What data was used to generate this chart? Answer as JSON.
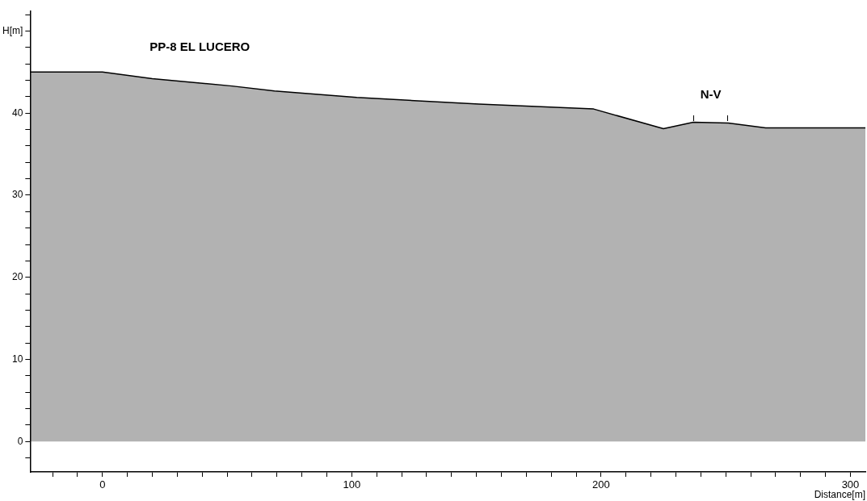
{
  "chart_data": {
    "type": "area",
    "title": "PP-8 EL LUCERO",
    "xlabel": "Distance[m]",
    "x": [
      -29,
      0,
      20,
      52,
      69,
      102,
      151,
      197,
      225,
      237,
      251,
      266,
      306
    ],
    "series": [
      {
        "color": "#000000",
        "values": [
          45,
          45,
          44.2,
          43.3,
          42.7,
          41.9,
          41.1,
          40.5,
          38.1,
          38.9,
          38.8,
          38.2,
          38.2
        ]
      }
    ],
    "annotations": [
      {
        "text": "N-V",
        "x": 244,
        "y": 38.8
      }
    ],
    "xlim": [
      -29,
      306
    ],
    "ylim": [
      -3.7,
      52.4
    ],
    "xticks": [
      {
        "value": -20,
        "label": null
      },
      {
        "value": -10,
        "label": null
      },
      0,
      {
        "value": 10,
        "label": null
      },
      {
        "value": 20,
        "label": null
      },
      {
        "value": 30,
        "label": null
      },
      {
        "value": 40,
        "label": null
      },
      {
        "value": 50,
        "label": null
      },
      {
        "value": 60,
        "label": null
      },
      {
        "value": 70,
        "label": null
      },
      {
        "value": 80,
        "label": null
      },
      {
        "value": 90,
        "label": null
      },
      100,
      {
        "value": 110,
        "label": null
      },
      {
        "value": 120,
        "label": null
      },
      {
        "value": 130,
        "label": null
      },
      {
        "value": 140,
        "label": null
      },
      {
        "value": 150,
        "label": null
      },
      {
        "value": 160,
        "label": null
      },
      {
        "value": 170,
        "label": null
      },
      {
        "value": 180,
        "label": null
      },
      {
        "value": 190,
        "label": null
      },
      200,
      {
        "value": 210,
        "label": null
      },
      {
        "value": 220,
        "label": null
      },
      {
        "value": 230,
        "label": null
      },
      {
        "value": 240,
        "label": null
      },
      {
        "value": 250,
        "label": null
      },
      {
        "value": 260,
        "label": null
      },
      {
        "value": 270,
        "label": null
      },
      {
        "value": 280,
        "label": null
      },
      {
        "value": 290,
        "label": null
      },
      300
    ],
    "yticks": [
      {
        "value": -2,
        "label": null
      },
      0,
      {
        "value": 2,
        "label": null
      },
      {
        "value": 4,
        "label": null
      },
      {
        "value": 6,
        "label": null
      },
      {
        "value": 8,
        "label": null
      },
      10,
      {
        "value": 12,
        "label": null
      },
      {
        "value": 14,
        "label": null
      },
      {
        "value": 16,
        "label": null
      },
      {
        "value": 18,
        "label": null
      },
      20,
      {
        "value": 22,
        "label": null
      },
      {
        "value": 24,
        "label": null
      },
      {
        "value": 26,
        "label": null
      },
      {
        "value": 28,
        "label": null
      },
      30,
      {
        "value": 32,
        "label": null
      },
      {
        "value": 34,
        "label": null
      },
      {
        "value": 36,
        "label": null
      },
      {
        "value": 38,
        "label": null
      },
      40,
      {
        "value": 42,
        "label": null
      },
      {
        "value": 44,
        "label": null
      },
      {
        "value": 46,
        "label": null
      },
      {
        "value": 48,
        "label": null
      },
      {
        "value": 50,
        "label": "H[m]"
      },
      {
        "value": 52,
        "label": null
      }
    ],
    "grid": false,
    "legend": false
  }
}
